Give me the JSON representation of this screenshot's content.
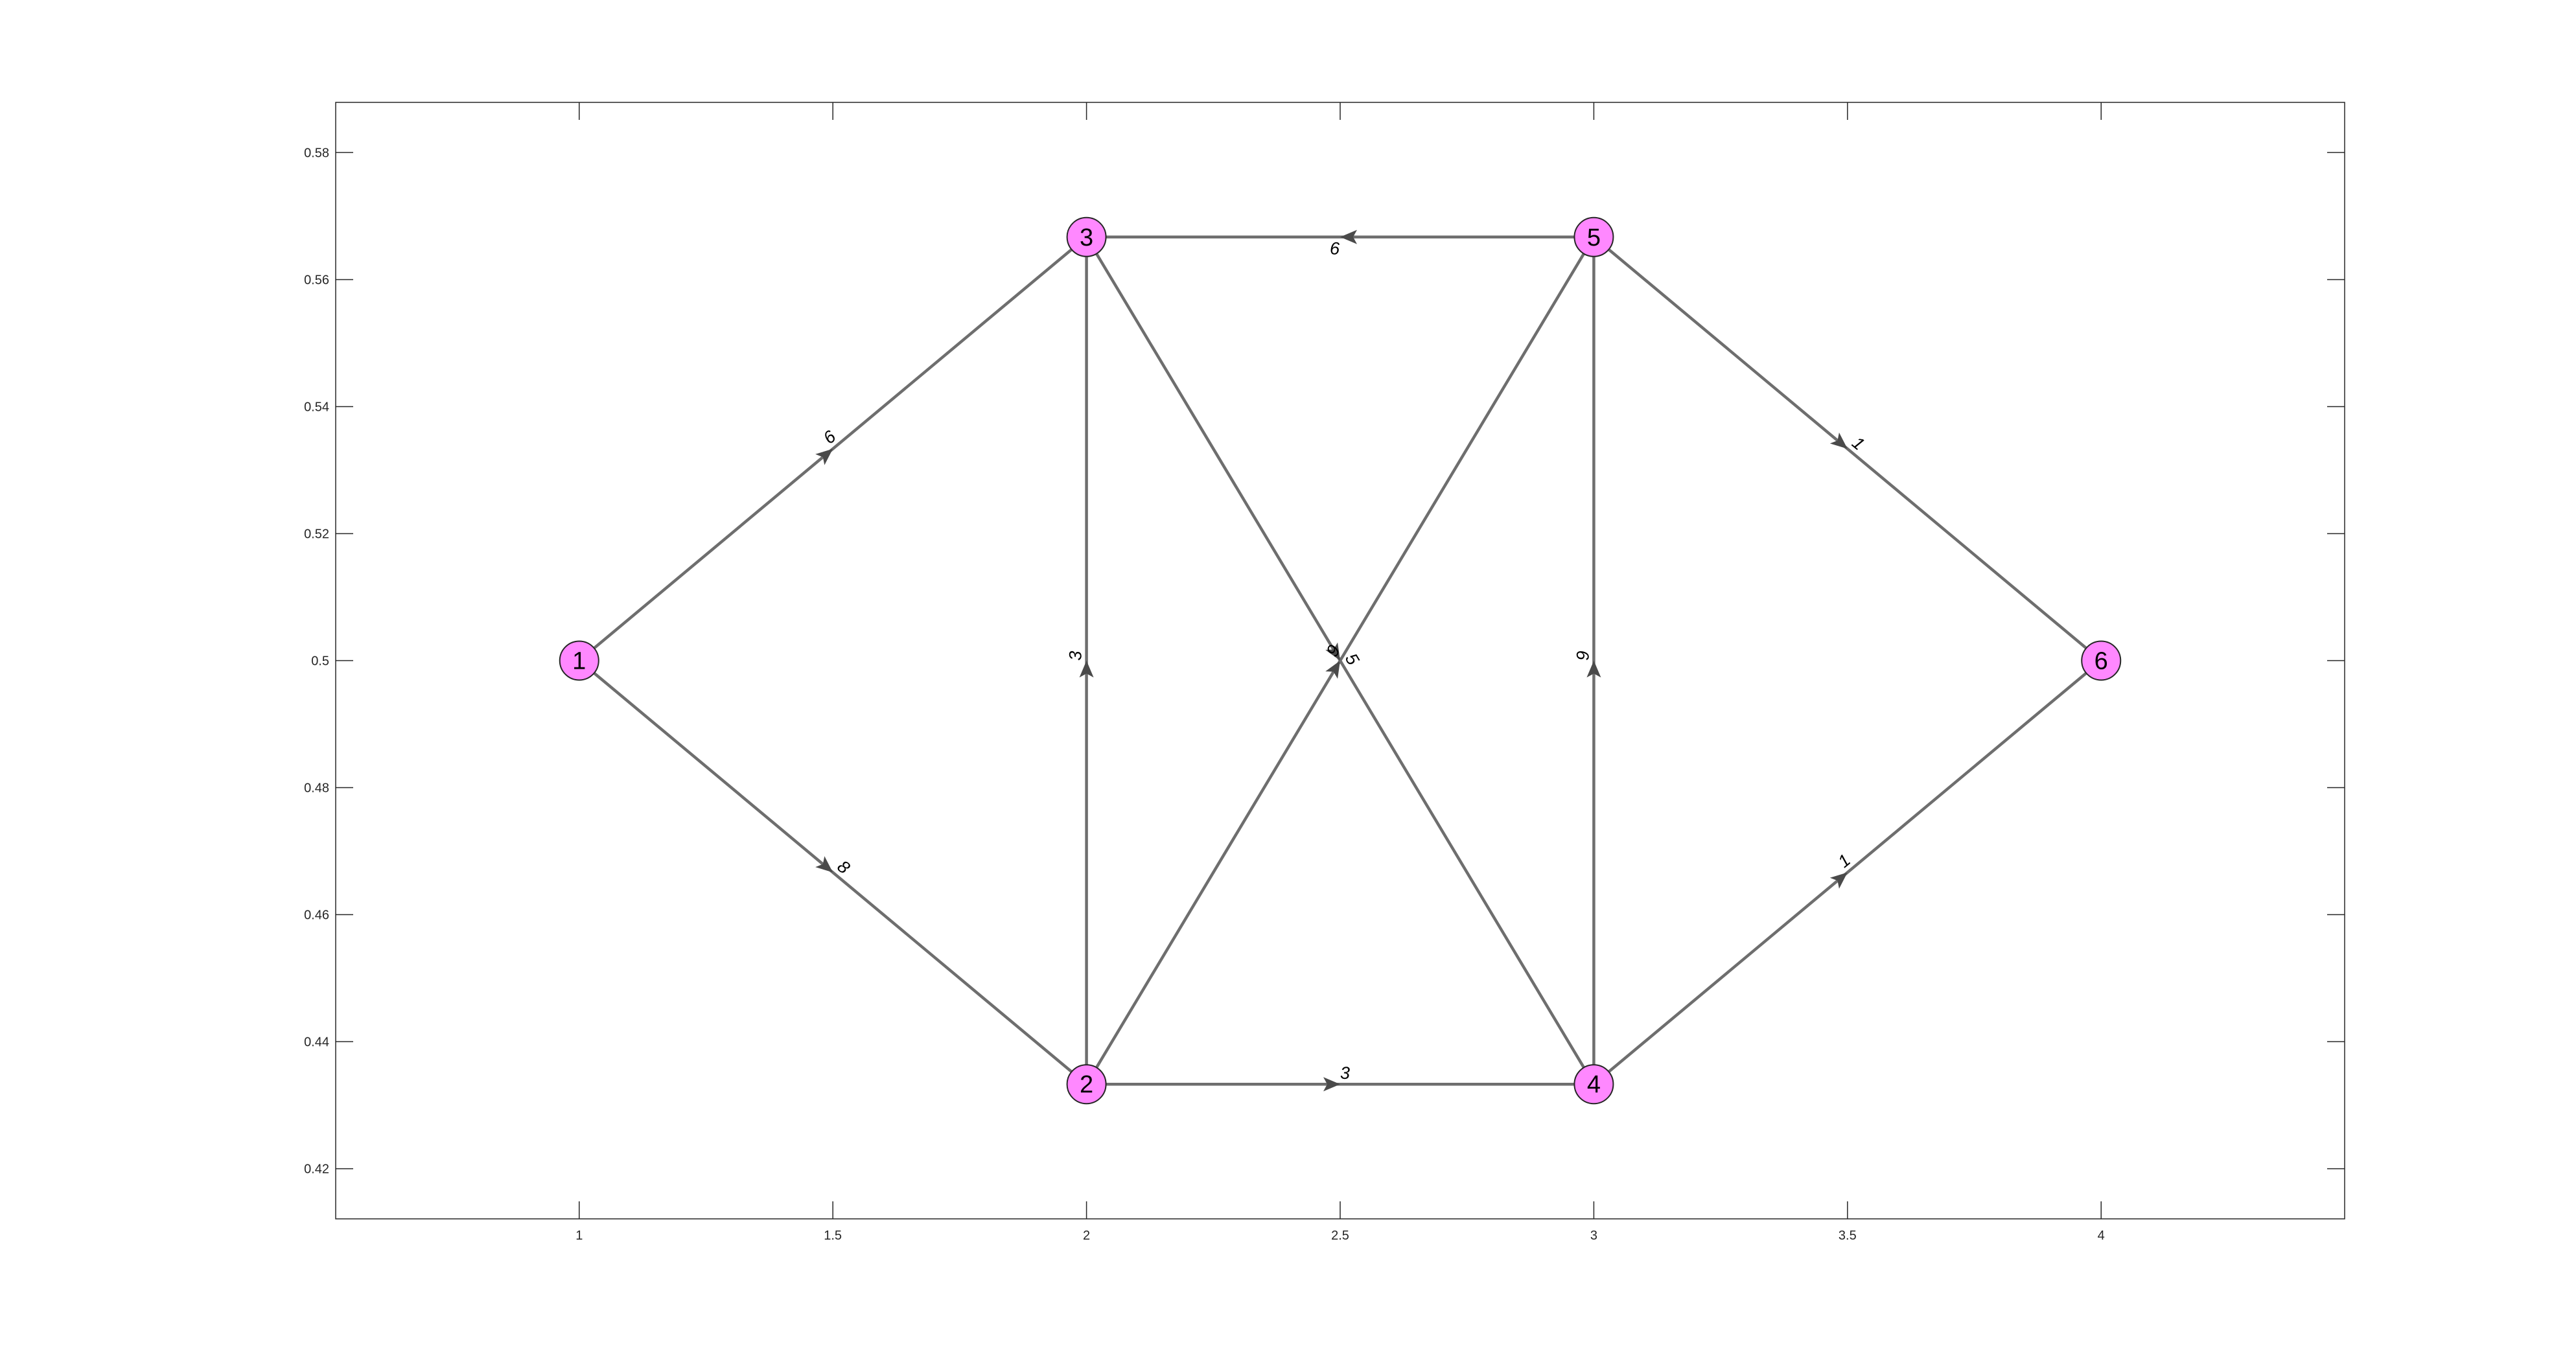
{
  "chart_data": {
    "type": "directed-graph",
    "xlim": [
      0.52,
      4.48
    ],
    "ylim": [
      0.4121,
      0.5879
    ],
    "xticks": [
      1,
      1.5,
      2,
      2.5,
      3,
      3.5,
      4
    ],
    "xtick_labels": [
      "1",
      "1.5",
      "2",
      "2.5",
      "3",
      "3.5",
      "4"
    ],
    "yticks": [
      0.42,
      0.44,
      0.46,
      0.48,
      0.5,
      0.52,
      0.54,
      0.56,
      0.58
    ],
    "ytick_labels": [
      "0.42",
      "0.44",
      "0.46",
      "0.48",
      "0.5",
      "0.52",
      "0.54",
      "0.56",
      "0.58"
    ],
    "node_color": "#ff88ff",
    "edge_color": "#6e6e6e",
    "nodes": [
      {
        "id": "1",
        "x": 1,
        "y": 0.5
      },
      {
        "id": "2",
        "x": 2,
        "y": 0.4333
      },
      {
        "id": "3",
        "x": 2,
        "y": 0.5667
      },
      {
        "id": "4",
        "x": 3,
        "y": 0.4333
      },
      {
        "id": "5",
        "x": 3,
        "y": 0.5667
      },
      {
        "id": "6",
        "x": 4,
        "y": 0.5
      }
    ],
    "edges": [
      {
        "source": "1",
        "target": "3",
        "weight": "6"
      },
      {
        "source": "1",
        "target": "2",
        "weight": "8"
      },
      {
        "source": "2",
        "target": "3",
        "weight": "3"
      },
      {
        "source": "2",
        "target": "5",
        "weight": "9"
      },
      {
        "source": "2",
        "target": "4",
        "weight": "3"
      },
      {
        "source": "3",
        "target": "4",
        "weight": "5"
      },
      {
        "source": "5",
        "target": "3",
        "weight": "9"
      },
      {
        "source": "4",
        "target": "5",
        "weight": "9"
      },
      {
        "source": "5",
        "target": "6",
        "weight": "1"
      },
      {
        "source": "4",
        "target": "6",
        "weight": "1"
      }
    ]
  }
}
